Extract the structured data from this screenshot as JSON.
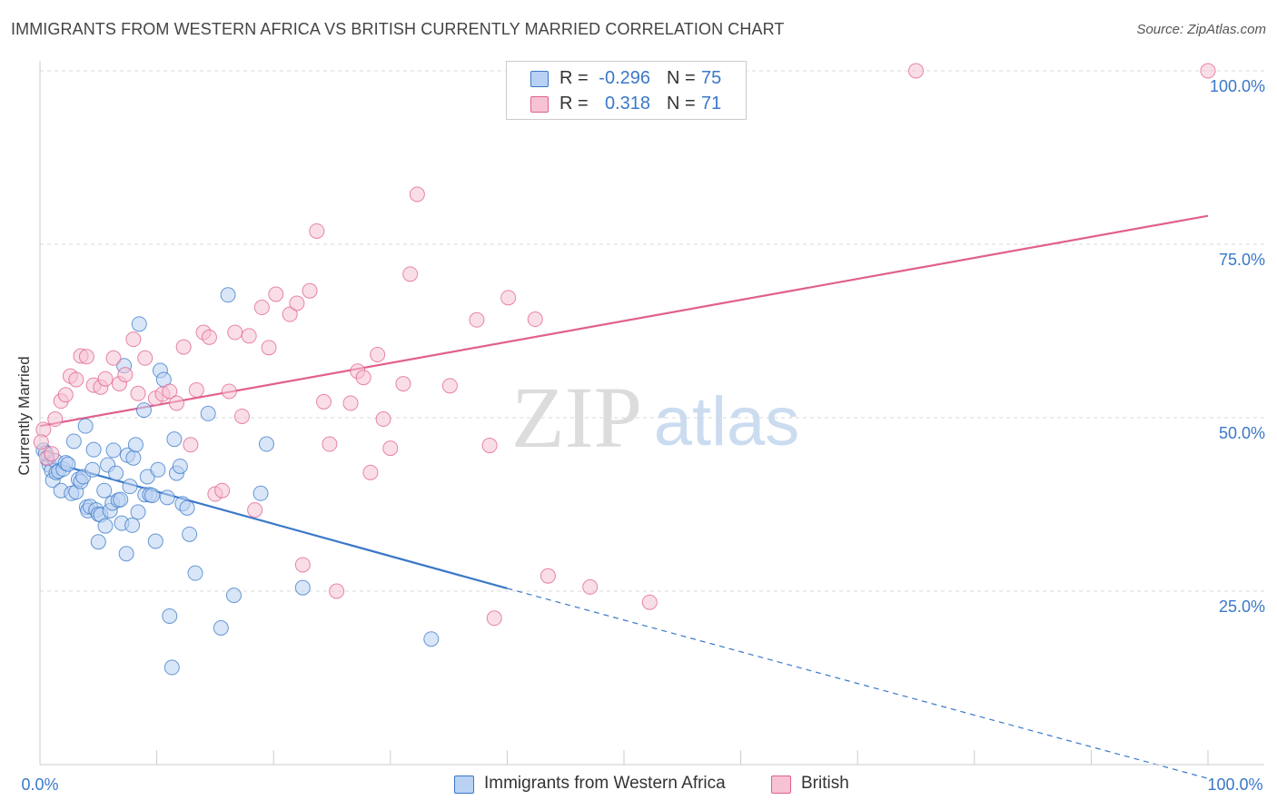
{
  "title": "IMMIGRANTS FROM WESTERN AFRICA VS BRITISH CURRENTLY MARRIED CORRELATION CHART",
  "source": "Source: ZipAtlas.com",
  "watermark": {
    "zip": "ZIP",
    "atlas": "atlas"
  },
  "legend_stats": [
    {
      "r_label": "R =",
      "r_value": "-0.296",
      "n_label": "N =",
      "n_value": "75"
    },
    {
      "r_label": "R =",
      "r_value": "0.318",
      "n_label": "N =",
      "n_value": "71"
    }
  ],
  "colors": {
    "blue": "#3a78c8",
    "blue_fill": "#b9d2f3",
    "pink": "#e0608c",
    "pink_fill": "#f6c2d4",
    "grid": "#d8d8d8"
  },
  "chart_data": {
    "type": "scatter",
    "title": "IMMIGRANTS FROM WESTERN AFRICA VS BRITISH CURRENTLY MARRIED CORRELATION CHART",
    "xlabel": "",
    "ylabel": "Currently Married",
    "xlim": [
      0,
      100
    ],
    "ylim": [
      0,
      100
    ],
    "x_tick_labels": [
      "0.0%",
      "100.0%"
    ],
    "y_tick_labels": [
      "25.0%",
      "50.0%",
      "75.0%",
      "100.0%"
    ],
    "y_ticks": [
      25,
      50,
      75,
      100
    ],
    "grid": true,
    "legend_position": "bottom",
    "series": [
      {
        "name": "Immigrants from Western Africa",
        "color": "#3a78c8",
        "trend": {
          "x": [
            0,
            40
          ],
          "y": [
            44.0,
            25.4
          ],
          "dashed_to": [
            100,
            -2.0
          ]
        },
        "points": [
          [
            0.3,
            45.3
          ],
          [
            0.5,
            44.9
          ],
          [
            0.6,
            44.1
          ],
          [
            0.8,
            43.2
          ],
          [
            1.0,
            42.4
          ],
          [
            1.1,
            41.0
          ],
          [
            1.3,
            43.8
          ],
          [
            1.4,
            42.1
          ],
          [
            1.6,
            42.3
          ],
          [
            1.8,
            39.5
          ],
          [
            2.0,
            42.6
          ],
          [
            2.2,
            43.5
          ],
          [
            2.4,
            43.3
          ],
          [
            2.7,
            39.1
          ],
          [
            2.9,
            46.6
          ],
          [
            3.1,
            39.3
          ],
          [
            3.3,
            41.1
          ],
          [
            3.5,
            40.8
          ],
          [
            3.7,
            41.5
          ],
          [
            3.9,
            48.8
          ],
          [
            4.0,
            37.1
          ],
          [
            4.1,
            36.6
          ],
          [
            4.3,
            37.2
          ],
          [
            4.5,
            42.5
          ],
          [
            4.6,
            45.4
          ],
          [
            4.8,
            36.7
          ],
          [
            5.0,
            32.1
          ],
          [
            5.0,
            36.1
          ],
          [
            5.2,
            36.0
          ],
          [
            5.5,
            39.5
          ],
          [
            5.6,
            34.4
          ],
          [
            5.8,
            43.2
          ],
          [
            6.0,
            36.6
          ],
          [
            6.2,
            37.7
          ],
          [
            6.3,
            45.3
          ],
          [
            6.5,
            42.0
          ],
          [
            6.7,
            38.1
          ],
          [
            6.9,
            38.2
          ],
          [
            7.0,
            34.8
          ],
          [
            7.2,
            57.5
          ],
          [
            7.4,
            30.4
          ],
          [
            7.5,
            44.6
          ],
          [
            7.7,
            40.1
          ],
          [
            7.9,
            34.5
          ],
          [
            8.0,
            44.2
          ],
          [
            8.2,
            46.1
          ],
          [
            8.4,
            36.4
          ],
          [
            8.5,
            63.5
          ],
          [
            8.9,
            51.1
          ],
          [
            9.0,
            38.9
          ],
          [
            9.2,
            41.5
          ],
          [
            9.4,
            38.9
          ],
          [
            9.6,
            38.8
          ],
          [
            9.9,
            32.2
          ],
          [
            10.1,
            42.5
          ],
          [
            10.3,
            56.8
          ],
          [
            10.6,
            55.5
          ],
          [
            10.9,
            38.5
          ],
          [
            11.1,
            21.4
          ],
          [
            11.3,
            14.0
          ],
          [
            11.5,
            46.9
          ],
          [
            11.7,
            42.0
          ],
          [
            12.0,
            43.0
          ],
          [
            12.2,
            37.6
          ],
          [
            12.6,
            37.0
          ],
          [
            12.8,
            33.2
          ],
          [
            13.3,
            27.6
          ],
          [
            14.4,
            50.6
          ],
          [
            15.5,
            19.7
          ],
          [
            16.1,
            67.7
          ],
          [
            16.6,
            24.4
          ],
          [
            18.9,
            39.1
          ],
          [
            19.4,
            46.2
          ],
          [
            22.5,
            25.5
          ],
          [
            33.5,
            18.1
          ]
        ]
      },
      {
        "name": "British",
        "color": "#e0608c",
        "trend": {
          "x": [
            0,
            100
          ],
          "y": [
            48.8,
            79.1
          ]
        },
        "points": [
          [
            0.3,
            48.3
          ],
          [
            0.6,
            44.2
          ],
          [
            1.0,
            44.8
          ],
          [
            1.3,
            49.8
          ],
          [
            1.8,
            52.4
          ],
          [
            2.2,
            53.3
          ],
          [
            2.6,
            56.0
          ],
          [
            3.1,
            55.5
          ],
          [
            3.5,
            58.9
          ],
          [
            4.0,
            58.8
          ],
          [
            4.6,
            54.7
          ],
          [
            5.2,
            54.4
          ],
          [
            5.6,
            55.6
          ],
          [
            6.3,
            58.6
          ],
          [
            6.8,
            54.9
          ],
          [
            7.3,
            56.2
          ],
          [
            8.0,
            61.3
          ],
          [
            8.4,
            53.5
          ],
          [
            9.0,
            58.6
          ],
          [
            9.9,
            52.8
          ],
          [
            10.5,
            53.4
          ],
          [
            11.1,
            53.8
          ],
          [
            11.7,
            52.1
          ],
          [
            12.3,
            60.2
          ],
          [
            12.9,
            46.1
          ],
          [
            13.4,
            54.0
          ],
          [
            14.0,
            62.3
          ],
          [
            14.5,
            61.6
          ],
          [
            15.0,
            39.0
          ],
          [
            15.6,
            39.5
          ],
          [
            16.2,
            53.8
          ],
          [
            16.7,
            62.3
          ],
          [
            17.3,
            50.2
          ],
          [
            17.9,
            61.8
          ],
          [
            18.4,
            36.7
          ],
          [
            19.0,
            65.9
          ],
          [
            19.6,
            60.1
          ],
          [
            20.2,
            67.8
          ],
          [
            21.4,
            64.9
          ],
          [
            22.0,
            66.5
          ],
          [
            22.5,
            28.8
          ],
          [
            23.1,
            68.3
          ],
          [
            23.7,
            76.9
          ],
          [
            24.3,
            52.3
          ],
          [
            24.8,
            46.2
          ],
          [
            25.4,
            25.0
          ],
          [
            26.6,
            52.1
          ],
          [
            27.2,
            56.7
          ],
          [
            27.7,
            55.8
          ],
          [
            28.3,
            42.1
          ],
          [
            28.9,
            59.1
          ],
          [
            29.4,
            49.8
          ],
          [
            30.0,
            45.6
          ],
          [
            31.1,
            54.9
          ],
          [
            31.7,
            70.7
          ],
          [
            32.3,
            82.2
          ],
          [
            35.1,
            54.6
          ],
          [
            37.4,
            64.1
          ],
          [
            38.5,
            46.0
          ],
          [
            38.9,
            21.1
          ],
          [
            40.1,
            67.3
          ],
          [
            42.4,
            64.2
          ],
          [
            43.5,
            27.2
          ],
          [
            47.1,
            25.6
          ],
          [
            50.0,
            94.1
          ],
          [
            51.1,
            98.6
          ],
          [
            52.2,
            23.4
          ],
          [
            75.0,
            100.0
          ],
          [
            100.0,
            100.0
          ],
          [
            50.5,
            97.0
          ],
          [
            0.1,
            46.5
          ]
        ]
      }
    ]
  },
  "bottom_legend": [
    {
      "label": "Immigrants from Western Africa"
    },
    {
      "label": "British"
    }
  ]
}
